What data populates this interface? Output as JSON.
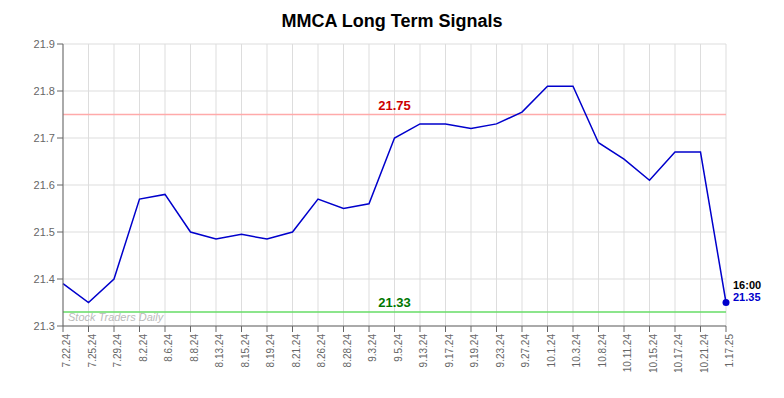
{
  "chart_data": {
    "type": "line",
    "title": "MMCA Long Term Signals",
    "categories": [
      "7.22.24",
      "7.25.24",
      "7.29.24",
      "8.2.24",
      "8.6.24",
      "8.8.24",
      "8.13.24",
      "8.15.24",
      "8.19.24",
      "8.21.24",
      "8.26.24",
      "8.28.24",
      "9.3.24",
      "9.5.24",
      "9.13.24",
      "9.17.24",
      "9.19.24",
      "9.23.24",
      "9.27.24",
      "10.1.24",
      "10.3.24",
      "10.8.24",
      "10.11.24",
      "10.15.24",
      "10.17.24",
      "10.21.24",
      "1.17.25"
    ],
    "values": [
      21.39,
      21.35,
      21.4,
      21.57,
      21.58,
      21.5,
      21.485,
      21.495,
      21.485,
      21.5,
      21.57,
      21.55,
      21.56,
      21.7,
      21.73,
      21.73,
      21.72,
      21.73,
      21.755,
      21.81,
      21.81,
      21.69,
      21.655,
      21.61,
      21.67,
      21.67,
      21.35
    ],
    "color": "#0000cc",
    "last_point_color": "#0000cc",
    "ylim": [
      21.3,
      21.9
    ],
    "yticks": [
      21.3,
      21.4,
      21.5,
      21.6,
      21.7,
      21.8,
      21.9
    ],
    "grid": true,
    "reference_lines": [
      {
        "y": 21.75,
        "color": "#ffaaaa",
        "label": "21.75",
        "label_color": "#cc0000"
      },
      {
        "y": 21.33,
        "color": "#66dd66",
        "label": "21.33",
        "label_color": "#007700"
      }
    ],
    "annotations": [
      {
        "text": "16:00",
        "color": "#000000"
      },
      {
        "text": "21.35",
        "color": "#0000cc"
      }
    ],
    "watermark": {
      "text": "Stock Traders Daily",
      "color": "#bbbbbb"
    }
  }
}
